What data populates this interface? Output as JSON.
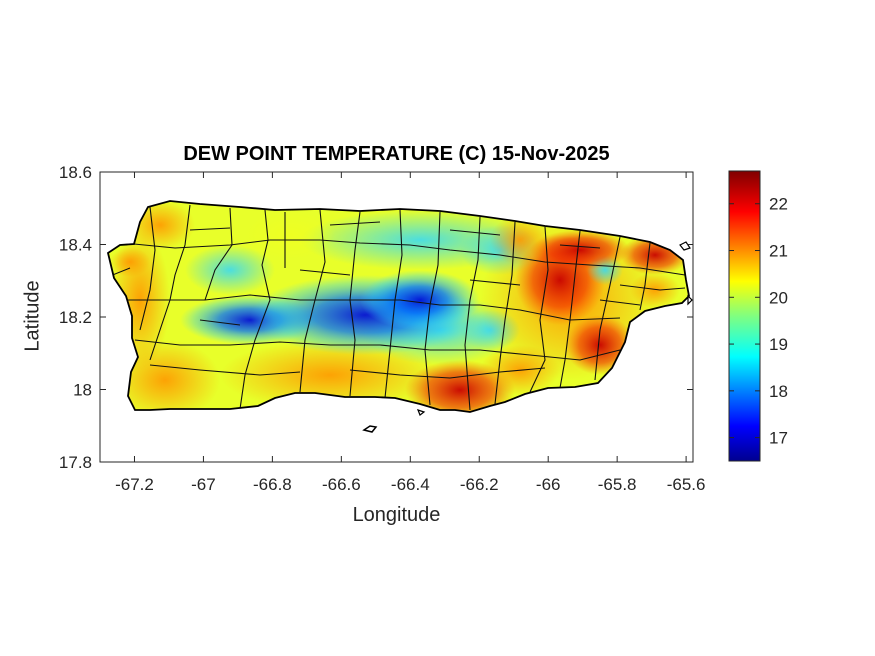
{
  "chart_data": {
    "type": "heatmap",
    "title": "DEW POINT TEMPERATURE (C) 15-Nov-2025",
    "xlabel": "Longitude",
    "ylabel": "Latitude",
    "xlim": [
      -67.3,
      -65.58
    ],
    "ylim": [
      17.8,
      18.6
    ],
    "xticks": [
      "-67.2",
      "-67",
      "-66.8",
      "-66.6",
      "-66.4",
      "-66.2",
      "-66",
      "-65.8",
      "-65.6"
    ],
    "yticks": [
      "17.8",
      "18",
      "18.2",
      "18.4",
      "18.6"
    ],
    "colorbar": {
      "min": 16.5,
      "max": 22.7,
      "ticks": [
        "17",
        "18",
        "19",
        "20",
        "21",
        "22"
      ],
      "colormap": "jet"
    },
    "region": "Puerto Rico",
    "grid": false,
    "field_samples": [
      {
        "lon": -67.15,
        "lat": 18.45,
        "value": 20.0
      },
      {
        "lon": -67.2,
        "lat": 18.05,
        "value": 21.0
      },
      {
        "lon": -67.05,
        "lat": 18.25,
        "value": 19.5
      },
      {
        "lon": -66.9,
        "lat": 18.45,
        "value": 20.0
      },
      {
        "lon": -66.8,
        "lat": 18.2,
        "value": 17.5
      },
      {
        "lon": -66.6,
        "lat": 18.2,
        "value": 16.9
      },
      {
        "lon": -66.45,
        "lat": 18.2,
        "value": 17.0
      },
      {
        "lon": -66.6,
        "lat": 18.42,
        "value": 19.0
      },
      {
        "lon": -66.3,
        "lat": 18.3,
        "value": 18.5
      },
      {
        "lon": -66.3,
        "lat": 18.45,
        "value": 19.5
      },
      {
        "lon": -66.15,
        "lat": 18.15,
        "value": 19.0
      },
      {
        "lon": -66.3,
        "lat": 17.98,
        "value": 21.5
      },
      {
        "lon": -66.6,
        "lat": 18.0,
        "value": 21.0
      },
      {
        "lon": -66.85,
        "lat": 18.0,
        "value": 21.0
      },
      {
        "lon": -66.0,
        "lat": 18.27,
        "value": 22.5
      },
      {
        "lon": -65.9,
        "lat": 18.1,
        "value": 21.5
      },
      {
        "lon": -65.75,
        "lat": 18.2,
        "value": 22.0
      },
      {
        "lon": -65.8,
        "lat": 18.32,
        "value": 19.0
      },
      {
        "lon": -65.7,
        "lat": 18.35,
        "value": 20.5
      },
      {
        "lon": -66.0,
        "lat": 18.42,
        "value": 21.5
      },
      {
        "lon": -66.05,
        "lat": 18.0,
        "value": 20.5
      }
    ]
  }
}
